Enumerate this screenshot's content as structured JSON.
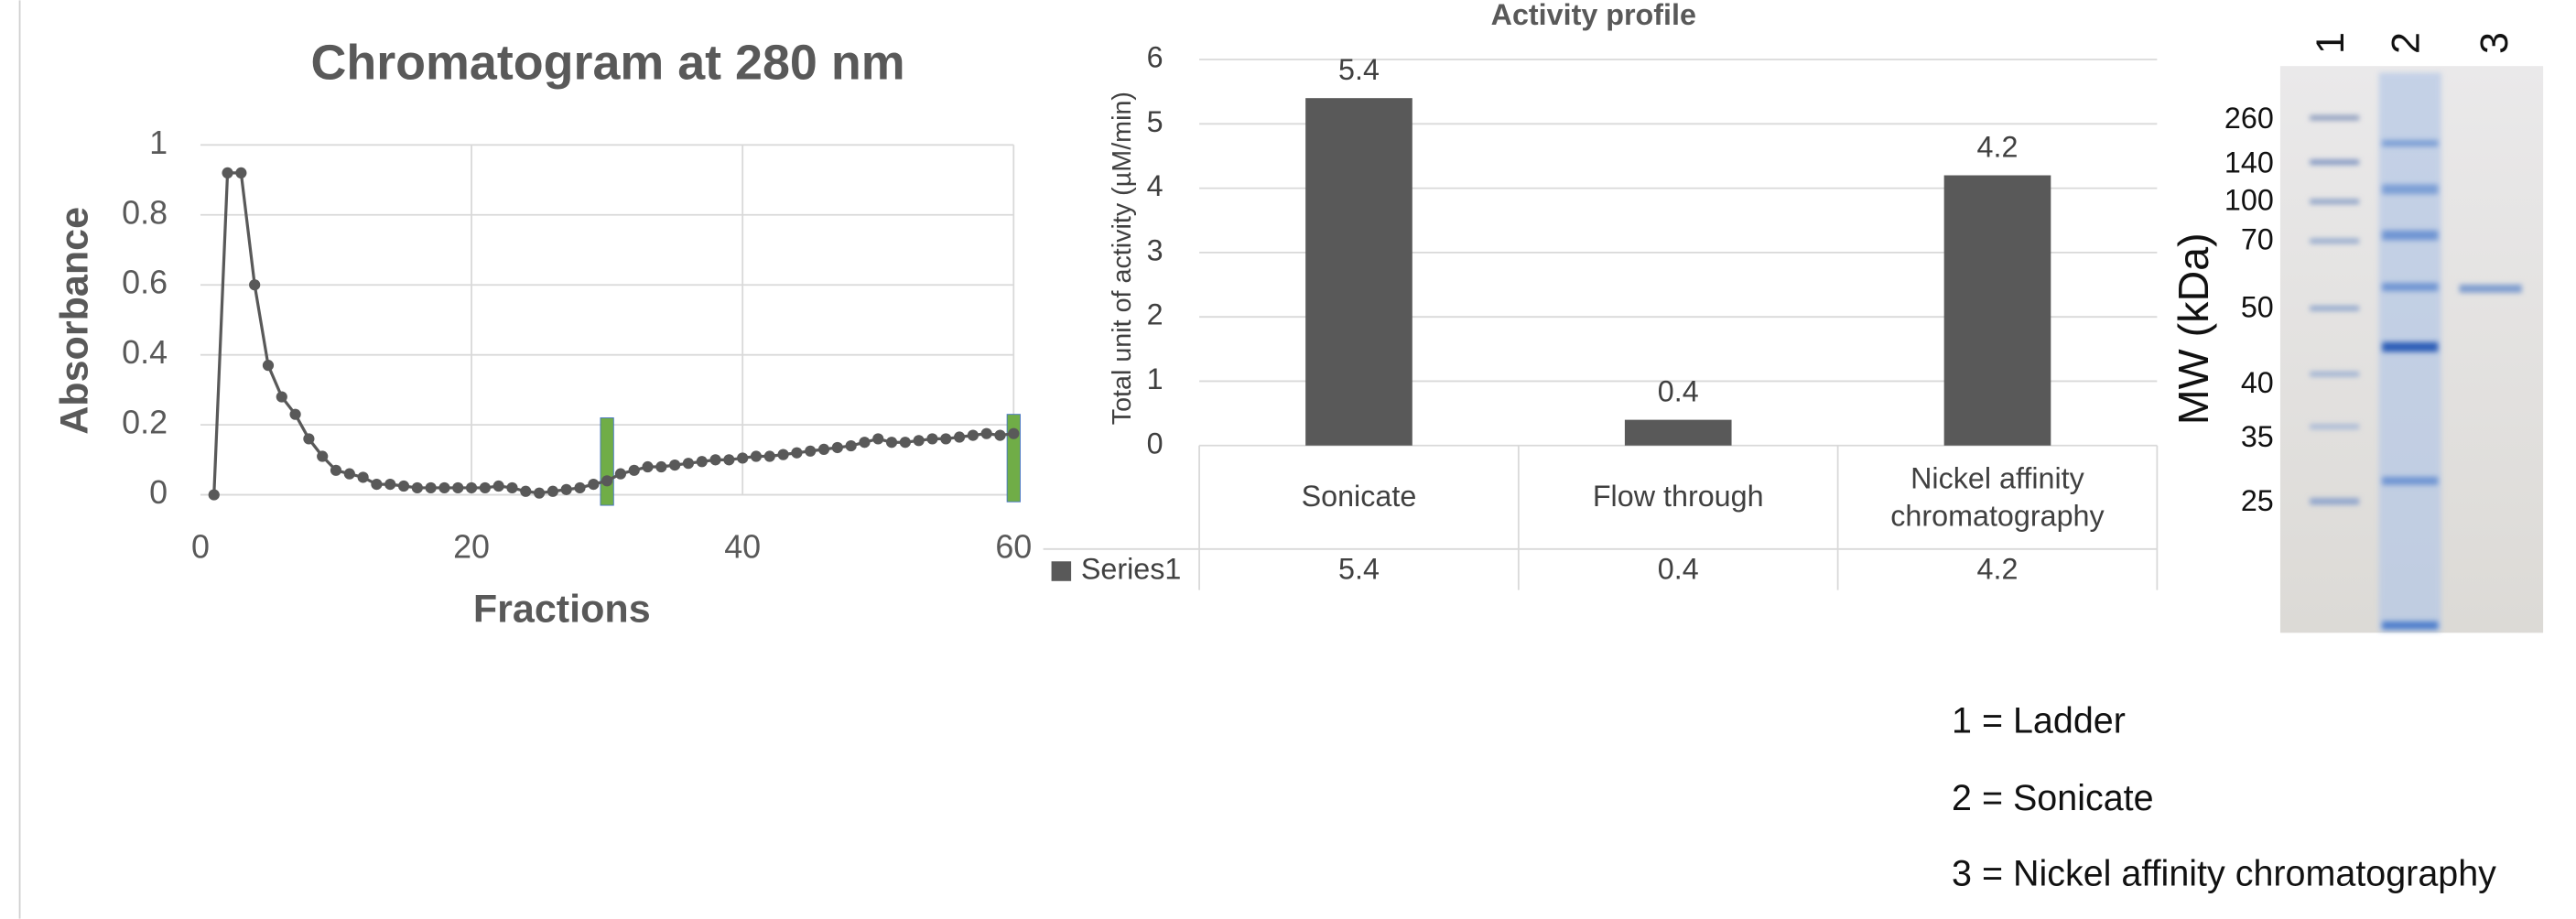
{
  "chart_data": [
    {
      "type": "line",
      "title": "Chromatogram at 280 nm",
      "x_label": "Fractions",
      "y_label": "Absorbance",
      "x": [
        1,
        2,
        3,
        4,
        5,
        6,
        7,
        8,
        9,
        10,
        11,
        12,
        13,
        14,
        15,
        16,
        17,
        18,
        19,
        20,
        21,
        22,
        23,
        24,
        25,
        26,
        27,
        28,
        29,
        30,
        31,
        32,
        33,
        34,
        35,
        36,
        37,
        38,
        39,
        40,
        41,
        42,
        43,
        44,
        45,
        46,
        47,
        48,
        49,
        50,
        51,
        52,
        53,
        54,
        55,
        56,
        57,
        58,
        59,
        60
      ],
      "values": [
        0,
        0.92,
        0.92,
        0.6,
        0.37,
        0.28,
        0.23,
        0.16,
        0.11,
        0.07,
        0.06,
        0.05,
        0.03,
        0.03,
        0.025,
        0.02,
        0.02,
        0.02,
        0.02,
        0.02,
        0.02,
        0.025,
        0.02,
        0.01,
        0.005,
        0.01,
        0.015,
        0.02,
        0.03,
        0.04,
        0.06,
        0.07,
        0.08,
        0.08,
        0.085,
        0.09,
        0.095,
        0.1,
        0.1,
        0.105,
        0.11,
        0.11,
        0.115,
        0.12,
        0.125,
        0.13,
        0.135,
        0.14,
        0.15,
        0.16,
        0.15,
        0.15,
        0.155,
        0.16,
        0.16,
        0.165,
        0.17,
        0.175,
        0.17,
        0.175
      ],
      "color": "#595959",
      "xlim": [
        0,
        60
      ],
      "xticks": [
        0,
        20,
        40,
        60
      ],
      "ylim": [
        0,
        1
      ],
      "yticks": [
        0,
        0.2,
        0.4,
        0.6,
        0.8,
        1
      ],
      "grid": true
    },
    {
      "type": "bar",
      "title": "Activity profile",
      "y_label": "Total unit of activity (µM/min)",
      "categories": [
        "Sonicate",
        "Flow through",
        "Nickel affinity chromatography"
      ],
      "series": [
        {
          "name": "Series1",
          "color": "#595959",
          "values": [
            5.4,
            0.4,
            4.2
          ]
        }
      ],
      "ylim": [
        0,
        6
      ],
      "yticks": [
        0,
        1,
        2,
        3,
        4,
        5,
        6
      ],
      "grid": true,
      "data_table": true
    }
  ],
  "gel": {
    "lanes": [
      "1",
      "2",
      "3"
    ],
    "mw_label": "MW (kDa)",
    "markers": [
      "260",
      "140",
      "100",
      "70",
      "50",
      "40",
      "35",
      "25"
    ],
    "legend": [
      "1 = Ladder",
      "2 = Sonicate",
      "3 = Nickel affinity chromatography"
    ]
  }
}
